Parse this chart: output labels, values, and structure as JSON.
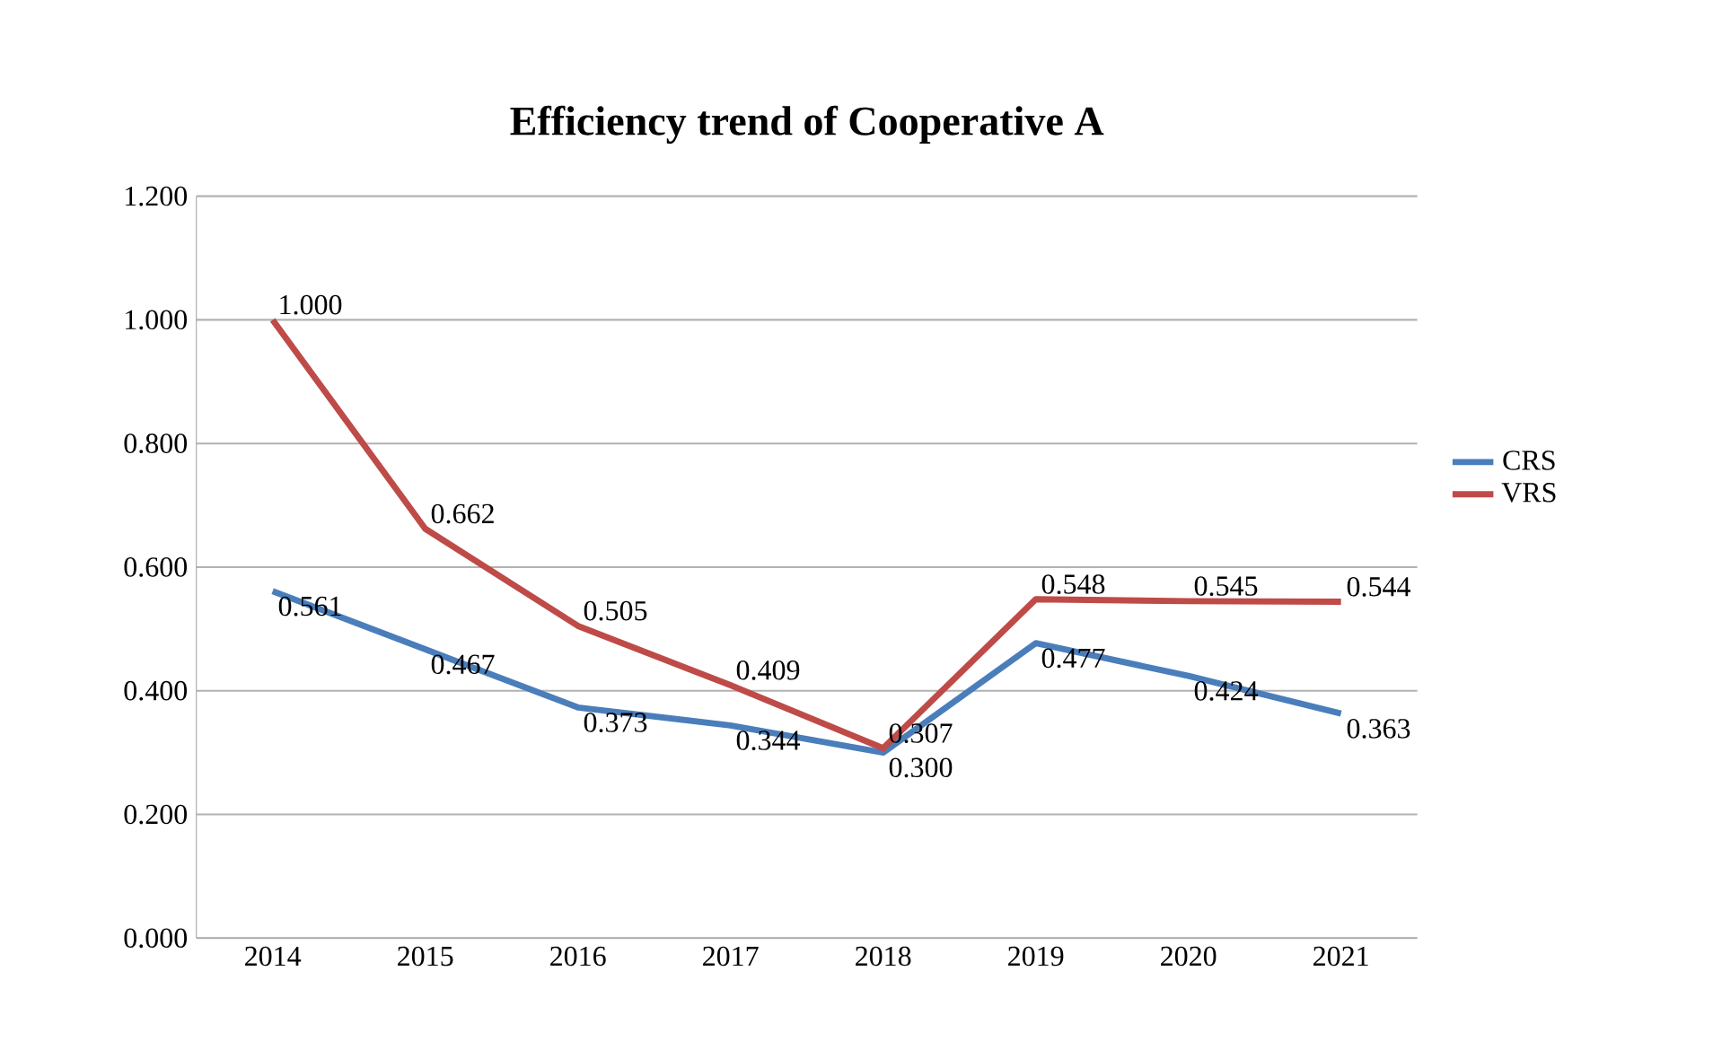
{
  "chart_data": {
    "type": "line",
    "title": "Efficiency trend of Cooperative A",
    "categories": [
      "2014",
      "2015",
      "2016",
      "2017",
      "2018",
      "2019",
      "2020",
      "2021"
    ],
    "series": [
      {
        "name": "CRS",
        "color": "#4a7ebb",
        "values": [
          0.561,
          0.467,
          0.373,
          0.344,
          0.3,
          0.477,
          0.424,
          0.363
        ],
        "value_labels": [
          "0.561",
          "0.467",
          "0.373",
          "0.344",
          "0.300",
          "0.477",
          "0.424",
          "0.363"
        ]
      },
      {
        "name": "VRS",
        "color": "#be4b48",
        "values": [
          1.0,
          0.662,
          0.505,
          0.409,
          0.307,
          0.548,
          0.545,
          0.544
        ],
        "value_labels": [
          "1.000",
          "0.662",
          "0.505",
          "0.409",
          "0.307",
          "0.548",
          "0.545",
          "0.544"
        ]
      }
    ],
    "ylim": [
      0,
      1.2
    ],
    "yticks": [
      {
        "value": 0,
        "label": "0.000"
      },
      {
        "value": 0.2,
        "label": "0.200"
      },
      {
        "value": 0.4,
        "label": "0.400"
      },
      {
        "value": 0.6,
        "label": "0.600"
      },
      {
        "value": 0.8,
        "label": "0.800"
      },
      {
        "value": 1.0,
        "label": "1.000"
      },
      {
        "value": 1.2,
        "label": "1.200"
      }
    ],
    "grid": "y",
    "legend": "right",
    "marker": "none",
    "line_style": "solid"
  }
}
